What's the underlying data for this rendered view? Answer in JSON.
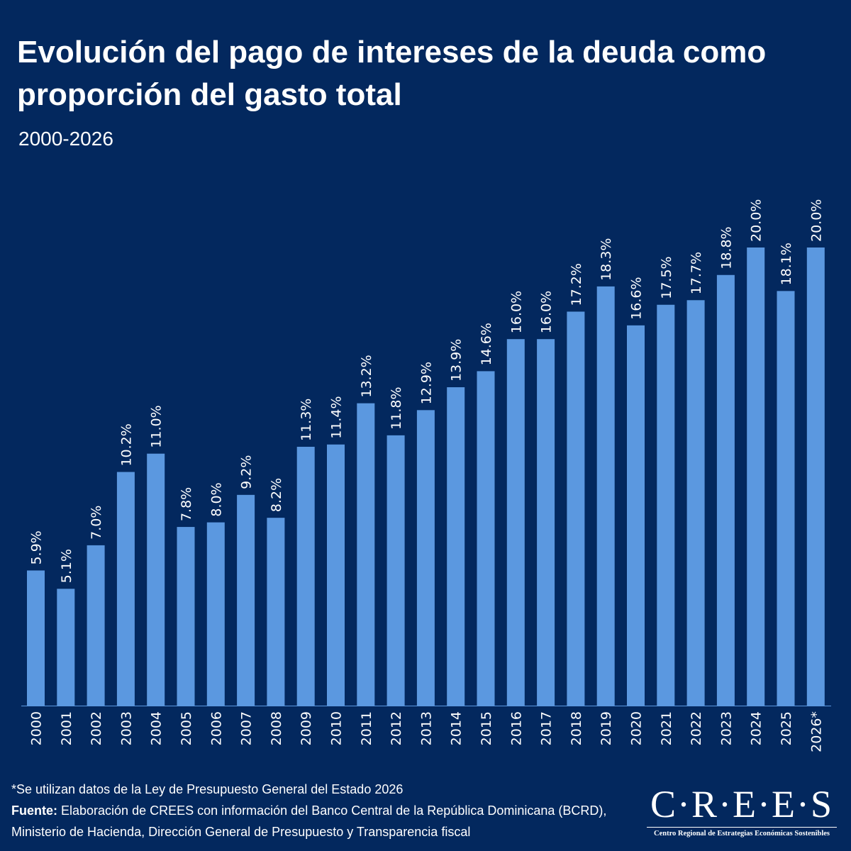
{
  "header": {
    "title": "Evolución del pago de intereses de la deuda como proporción del gasto total",
    "subtitle": "2000-2026"
  },
  "chart_data": {
    "type": "bar",
    "categories": [
      "2000",
      "2001",
      "2002",
      "2003",
      "2004",
      "2005",
      "2006",
      "2007",
      "2008",
      "2009",
      "2010",
      "2011",
      "2012",
      "2013",
      "2014",
      "2015",
      "2016",
      "2017",
      "2018",
      "2019",
      "2020",
      "2021",
      "2022",
      "2023",
      "2024",
      "2025",
      "2026*"
    ],
    "values": [
      5.9,
      5.1,
      7.0,
      10.2,
      11.0,
      7.8,
      8.0,
      9.2,
      8.2,
      11.3,
      11.4,
      13.2,
      11.8,
      12.9,
      13.9,
      14.6,
      16.0,
      16.0,
      17.2,
      18.3,
      16.6,
      17.5,
      17.7,
      18.8,
      20.0,
      18.1,
      20.0
    ],
    "labels": [
      "5.9%",
      "5.1%",
      "7.0%",
      "10.2%",
      "11.0%",
      "7.8%",
      "8.0%",
      "9.2%",
      "8.2%",
      "11.3%",
      "11.4%",
      "13.2%",
      "11.8%",
      "12.9%",
      "13.9%",
      "14.6%",
      "16.0%",
      "16.0%",
      "17.2%",
      "18.3%",
      "16.6%",
      "17.5%",
      "17.7%",
      "18.8%",
      "20.0%",
      "18.1%",
      "20.0%"
    ],
    "ylim": [
      0,
      20
    ],
    "bar_color": "#5b98e0",
    "background": "#03285e",
    "grid": false,
    "legend": "none"
  },
  "footer": {
    "note": "*Se utilizan datos de la Ley de Presupuesto General del Estado 2026",
    "source_label": "Fuente:",
    "source_text": " Elaboración de CREES con información del Banco Central de la República Dominicana (BCRD), Ministerio de Hacienda, Dirección General de Presupuesto y Transparencia fiscal"
  },
  "logo": {
    "name": "C·R·E·E·S",
    "tagline": "Centro Regional de Estrategias Económicas Sostenibles"
  }
}
